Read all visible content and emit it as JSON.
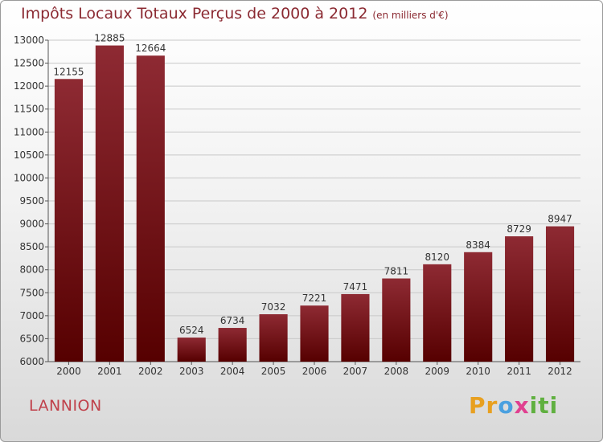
{
  "title": "Impôts Locaux Totaux Perçus de 2000 à 2012",
  "subtitle": "(en milliers d'€)",
  "commune": "LANNION",
  "logo": {
    "p1": "Pr",
    "p2": "o",
    "p3": "x",
    "p4": "iti"
  },
  "colors": {
    "bar_top": "#8e2a33",
    "bar_bottom": "#560000",
    "title": "#8b2a32",
    "grid": "#c8c8c8"
  },
  "chart_data": {
    "type": "bar",
    "categories": [
      "2000",
      "2001",
      "2002",
      "2003",
      "2004",
      "2005",
      "2006",
      "2007",
      "2008",
      "2009",
      "2010",
      "2011",
      "2012"
    ],
    "values": [
      12155,
      12885,
      12664,
      6524,
      6734,
      7032,
      7221,
      7471,
      7811,
      8120,
      8384,
      8729,
      8947
    ],
    "title": "Impôts Locaux Totaux Perçus de 2000 à 2012",
    "subtitle": "(en milliers d'€)",
    "xlabel": "",
    "ylabel": "",
    "ylim": [
      6000,
      13000
    ],
    "yticks": [
      6000,
      6500,
      7000,
      7500,
      8000,
      8500,
      9000,
      9500,
      10000,
      10500,
      11000,
      11500,
      12000,
      12500,
      13000
    ],
    "grid": true,
    "data_labels": true
  }
}
